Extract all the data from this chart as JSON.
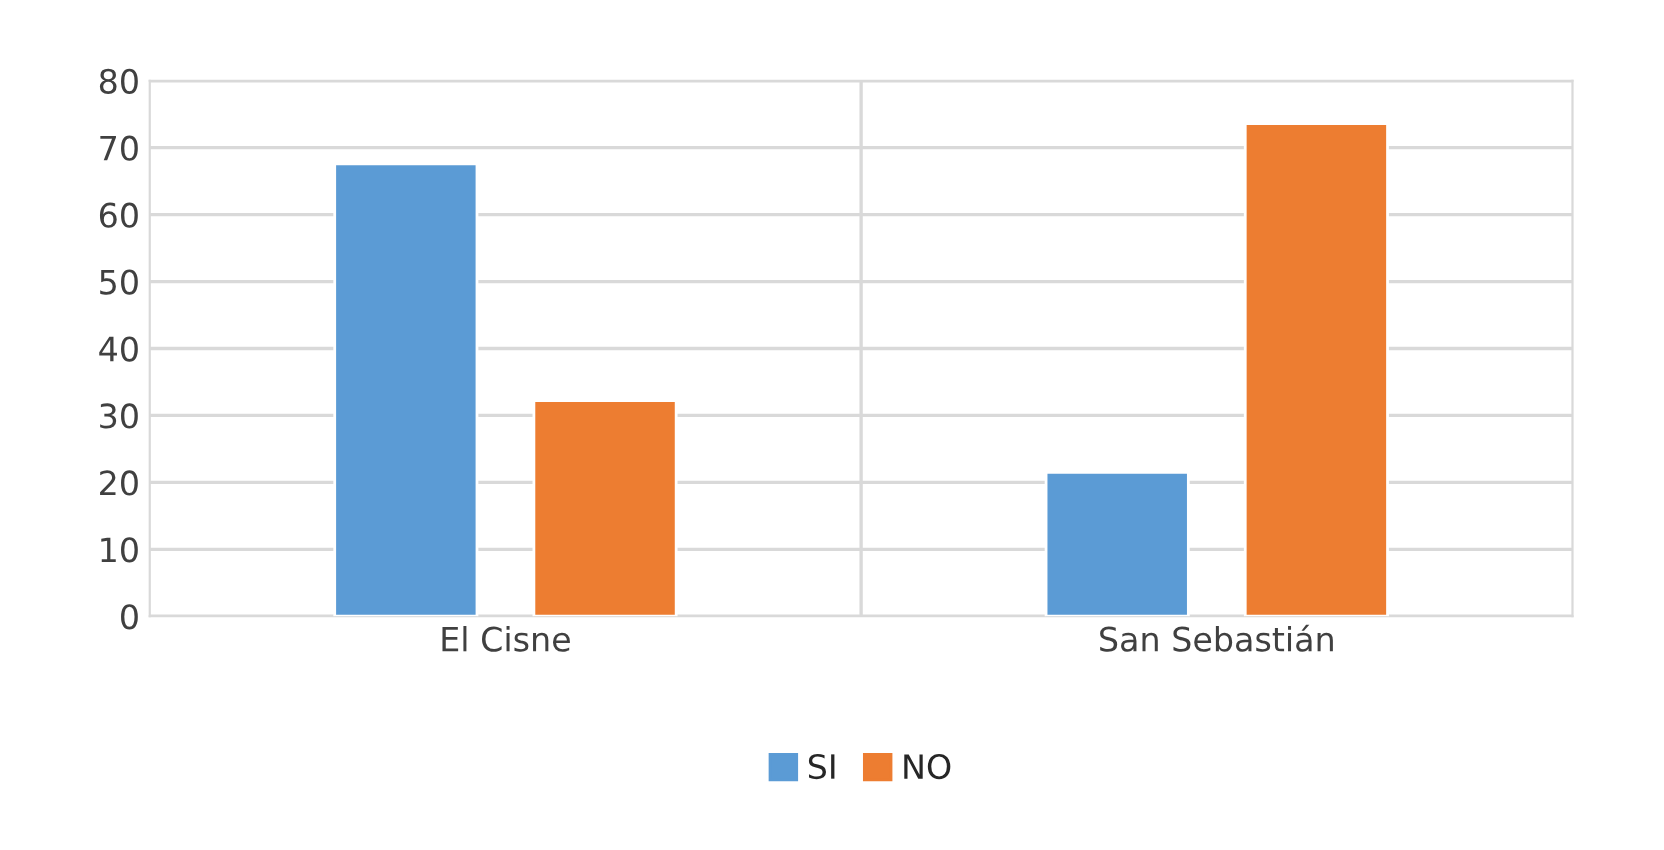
{
  "chart_data": {
    "type": "bar",
    "categories": [
      "El Cisne",
      "San Sebastián"
    ],
    "series": [
      {
        "name": "SI",
        "color": "#5b9bd5",
        "values": [
          67.6,
          21.5
        ]
      },
      {
        "name": "NO",
        "color": "#ed7d31",
        "values": [
          32.2,
          73.6
        ]
      }
    ],
    "ylim": [
      0,
      80
    ],
    "yticks": [
      0,
      10,
      20,
      30,
      40,
      50,
      60,
      70,
      80
    ],
    "grid": true,
    "legend": "bottom"
  }
}
